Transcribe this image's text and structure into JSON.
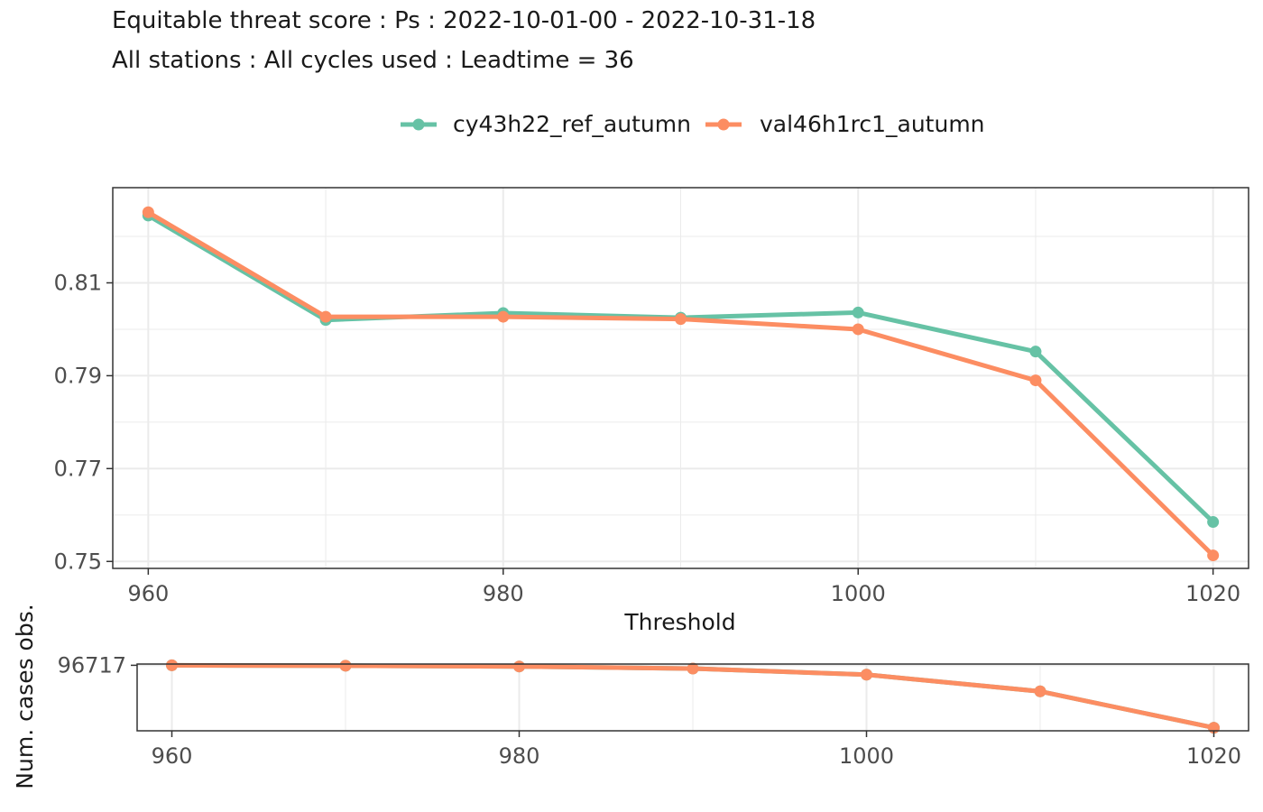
{
  "title": "Equitable threat score : Ps : 2022-10-01-00 - 2022-10-31-18",
  "subtitle": "All stations : All cycles used : Leadtime = 36",
  "colors": {
    "series1": "#66C2A5",
    "series2": "#FC8D62",
    "grid": "#ebebeb",
    "panel_border": "#333333"
  },
  "chart_data": [
    {
      "type": "line",
      "title": "",
      "xlabel": "Threshold",
      "ylabel": "",
      "xlim": [
        958,
        1022
      ],
      "ylim": [
        0.7485,
        0.8305
      ],
      "x_ticks": [
        960,
        980,
        1000,
        1020
      ],
      "y_ticks": [
        0.75,
        0.77,
        0.79,
        0.81
      ],
      "y_tick_labels": [
        "0.75",
        "0.77",
        "0.79",
        "0.81"
      ],
      "grid": true,
      "legend_position": "top",
      "x": [
        960,
        970,
        980,
        990,
        1000,
        1010,
        1020
      ],
      "series": [
        {
          "name": "cy43h22_ref_autumn",
          "values": [
            0.8245,
            0.802,
            0.8035,
            0.8025,
            0.8036,
            0.7952,
            0.7585
          ]
        },
        {
          "name": "val46h1rc1_autumn",
          "values": [
            0.8252,
            0.8027,
            0.8027,
            0.8022,
            0.8,
            0.789,
            0.7513
          ]
        }
      ]
    },
    {
      "type": "line",
      "title": "",
      "xlabel": "",
      "ylabel": "Num. cases obs.",
      "xlim": [
        958,
        1022
      ],
      "ylim": [
        92400,
        96800
      ],
      "x_ticks": [
        960,
        980,
        1000,
        1020
      ],
      "y_ticks": [
        96717
      ],
      "y_tick_labels": [
        "96717"
      ],
      "grid": true,
      "x": [
        960,
        970,
        980,
        990,
        1000,
        1010,
        1020
      ],
      "series": [
        {
          "name": "cy43h22_ref_autumn",
          "values": [
            96717,
            96690,
            96640,
            96500,
            96100,
            95000,
            92600
          ]
        },
        {
          "name": "val46h1rc1_autumn",
          "values": [
            96717,
            96690,
            96640,
            96500,
            96100,
            95000,
            92600
          ]
        }
      ]
    }
  ]
}
